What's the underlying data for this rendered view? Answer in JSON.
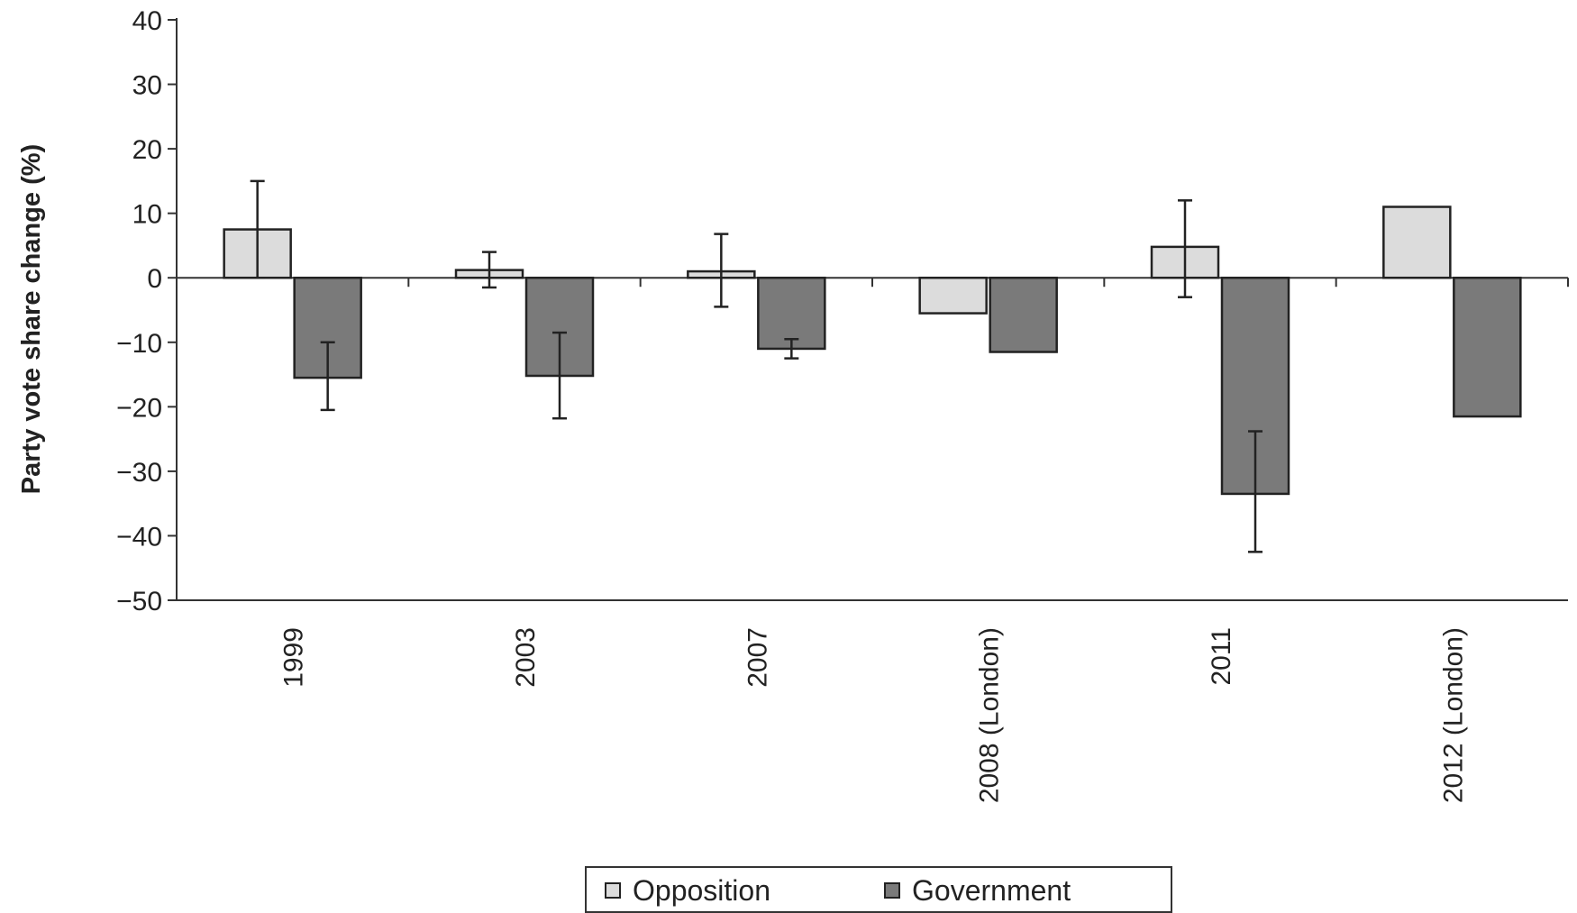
{
  "chart_data": {
    "type": "bar",
    "title": "",
    "xlabel": "",
    "ylabel": "Party vote share change (%)",
    "ylim": [
      -50,
      40
    ],
    "yticks": [
      40,
      30,
      20,
      10,
      0,
      -10,
      -20,
      -30,
      -40,
      -50
    ],
    "ytick_labels": [
      "40",
      "30",
      "20",
      "10",
      "0",
      "−10",
      "−20",
      "−30",
      "−40",
      "−50"
    ],
    "categories": [
      "1999",
      "2003",
      "2007",
      "2008 (London)",
      "2011",
      "2012 (London)"
    ],
    "series": [
      {
        "name": "Opposition",
        "color": "#dcdcdc",
        "values": [
          7.5,
          1.2,
          1.0,
          -5.5,
          4.8,
          11.0
        ],
        "error_low": [
          0,
          -1.5,
          -4.5,
          null,
          -3.0,
          null
        ],
        "error_high": [
          15,
          4,
          6.8,
          null,
          12,
          null
        ]
      },
      {
        "name": "Government",
        "color": "#7a7a7a",
        "values": [
          -15.5,
          -15.2,
          -11,
          -11.5,
          -33.5,
          -21.5
        ],
        "error_low": [
          -20.5,
          -21.8,
          -12.5,
          null,
          -42.5,
          null
        ],
        "error_high": [
          -10,
          -8.5,
          -9.5,
          null,
          -23.8,
          null
        ]
      }
    ],
    "grid": false,
    "legend": {
      "position": "bottom-center",
      "entries": [
        "Opposition",
        "Government"
      ]
    }
  }
}
